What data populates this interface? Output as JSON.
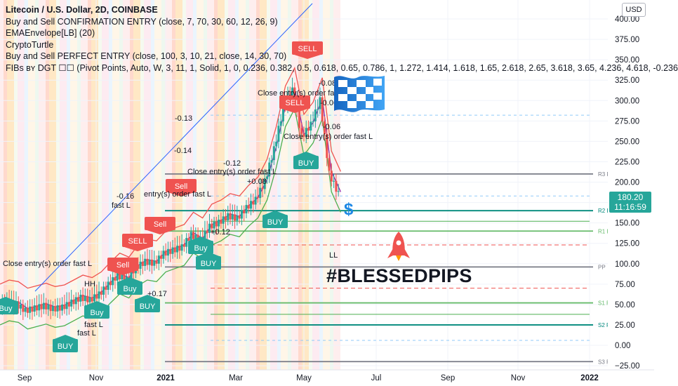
{
  "legend": {
    "title": "Litecoin / U.S. Dollar, 2D, COINBASE",
    "line1": "Buy and Sell CONFIRMATION ENTRY (close, 7, 70, 30, 60, 12, 26, 9)",
    "line2": "EMAEnvelope[LB] (20)",
    "line3": "CryptoTurtle",
    "line4": "Buy and Sell PERFECT ENTRY (close, 100, 3, 10, 21, close, 14, 30, 70)",
    "line5": "FIBs вʏ DGT ☐☐ (Pivot Points, Auto, W, 3, 11, 1, Solid, 1, 0, 0.236, 0.382, 0.5, 0.618, 0.65, 0.786, 1, 1.272, 1.414, 1.618, 1.65, 2.618, 2.65, 3.618, 3.65, 4.236, 4.618, -0.236"
  },
  "currency_button": "USD",
  "price_tag": {
    "price": "180.20",
    "countdown": "11:16:59",
    "color": "#26a69a"
  },
  "hashtag": "#BLESSEDPIPS",
  "colors": {
    "up": "#26a69a",
    "down": "#ef5350",
    "buy": "#26a69a",
    "sell": "#ef5350",
    "pivot": "#131722",
    "resistance": "#ef5350",
    "support": "#4caf50",
    "trend": "#2962ff"
  },
  "chart_data": {
    "type": "candlestick",
    "symbol": "Litecoin / U.S. Dollar",
    "interval": "2D",
    "exchange": "COINBASE",
    "y_axis": {
      "ticks": [
        "400.00",
        "375.00",
        "350.00",
        "325.00",
        "300.00",
        "275.00",
        "250.00",
        "225.00",
        "200.00",
        "175.00",
        "150.00",
        "125.00",
        "100.00",
        "75.00",
        "50.00",
        "25.00",
        "0.00",
        "−25.00"
      ],
      "range": [
        -27,
        423
      ]
    },
    "x_axis": {
      "ticks": [
        "Sep",
        "Nov",
        "2021",
        "Mar",
        "May",
        "Jul",
        "Sep",
        "Nov",
        "2022"
      ]
    },
    "price_path": [
      [
        0,
        47
      ],
      [
        4,
        52
      ],
      [
        8,
        50
      ],
      [
        12,
        42
      ],
      [
        16,
        45
      ],
      [
        20,
        48
      ],
      [
        24,
        44
      ],
      [
        28,
        46
      ],
      [
        32,
        52
      ],
      [
        36,
        58
      ],
      [
        40,
        55
      ],
      [
        44,
        62
      ],
      [
        48,
        74
      ],
      [
        52,
        85
      ],
      [
        56,
        80
      ],
      [
        60,
        95
      ],
      [
        64,
        102
      ],
      [
        68,
        100
      ],
      [
        72,
        112
      ],
      [
        76,
        116
      ],
      [
        80,
        120
      ],
      [
        84,
        135
      ],
      [
        88,
        128
      ],
      [
        92,
        145
      ],
      [
        96,
        150
      ],
      [
        100,
        158
      ],
      [
        104,
        155
      ],
      [
        108,
        168
      ],
      [
        112,
        178
      ],
      [
        116,
        200
      ],
      [
        120,
        240
      ],
      [
        124,
        290
      ],
      [
        128,
        312
      ],
      [
        132,
        255
      ],
      [
        136,
        270
      ],
      [
        140,
        300
      ],
      [
        144,
        210
      ],
      [
        148,
        185
      ]
    ],
    "pivot_levels": [
      {
        "label": "R3 P",
        "value": 210
      },
      {
        "label": "R2 P",
        "value": 165
      },
      {
        "label": "R1 P",
        "value": 140
      },
      {
        "label": "PP",
        "value": 96
      },
      {
        "label": "S1 P",
        "value": 52
      },
      {
        "label": "S2 P",
        "value": 25
      },
      {
        "label": "S3 P",
        "value": -20
      }
    ],
    "annotations": [
      {
        "text": "SELL",
        "kind": "sell"
      },
      {
        "text": "SELL",
        "kind": "sell"
      },
      {
        "text": "SELL",
        "kind": "sell"
      },
      {
        "text": "Sell",
        "kind": "sell"
      },
      {
        "text": "Sell",
        "kind": "sell"
      },
      {
        "text": "Sell",
        "kind": "sell"
      },
      {
        "text": "BUY",
        "kind": "buy"
      },
      {
        "text": "BUY",
        "kind": "buy"
      },
      {
        "text": "BUY",
        "kind": "buy"
      },
      {
        "text": "BUY",
        "kind": "buy"
      },
      {
        "text": "BUY",
        "kind": "buy"
      },
      {
        "text": "Buy",
        "kind": "buy"
      },
      {
        "text": "Buy",
        "kind": "buy"
      },
      {
        "text": "Buy",
        "kind": "buy"
      },
      {
        "text": "Buy",
        "kind": "buy"
      },
      {
        "text": "Close entry(s) order fast L",
        "kind": "text"
      },
      {
        "text": "Close entry(s) order fast L",
        "kind": "text"
      },
      {
        "text": "Close entry(s) order fast L",
        "kind": "text"
      },
      {
        "text": "Close entry(s) order fast L",
        "kind": "text"
      },
      {
        "text": "entry(s) order fast L",
        "kind": "text"
      },
      {
        "text": "fast L",
        "kind": "text"
      },
      {
        "text": "fast L",
        "kind": "text"
      },
      {
        "text": "fast L",
        "kind": "text"
      },
      {
        "text": "+0.17",
        "kind": "text"
      },
      {
        "text": "+0.12",
        "kind": "text"
      },
      {
        "text": "+0.08",
        "kind": "text"
      },
      {
        "text": "-0.16",
        "kind": "text"
      },
      {
        "text": "-0.14",
        "kind": "text"
      },
      {
        "text": "-0.13",
        "kind": "text"
      },
      {
        "text": "-0.12",
        "kind": "text"
      },
      {
        "text": "-0.08",
        "kind": "text"
      },
      {
        "text": "-0.06",
        "kind": "text"
      },
      {
        "text": "-0.06",
        "kind": "text"
      },
      {
        "text": "LL",
        "kind": "text"
      },
      {
        "text": "HH",
        "kind": "text"
      },
      {
        "text": "$",
        "kind": "text"
      }
    ]
  }
}
